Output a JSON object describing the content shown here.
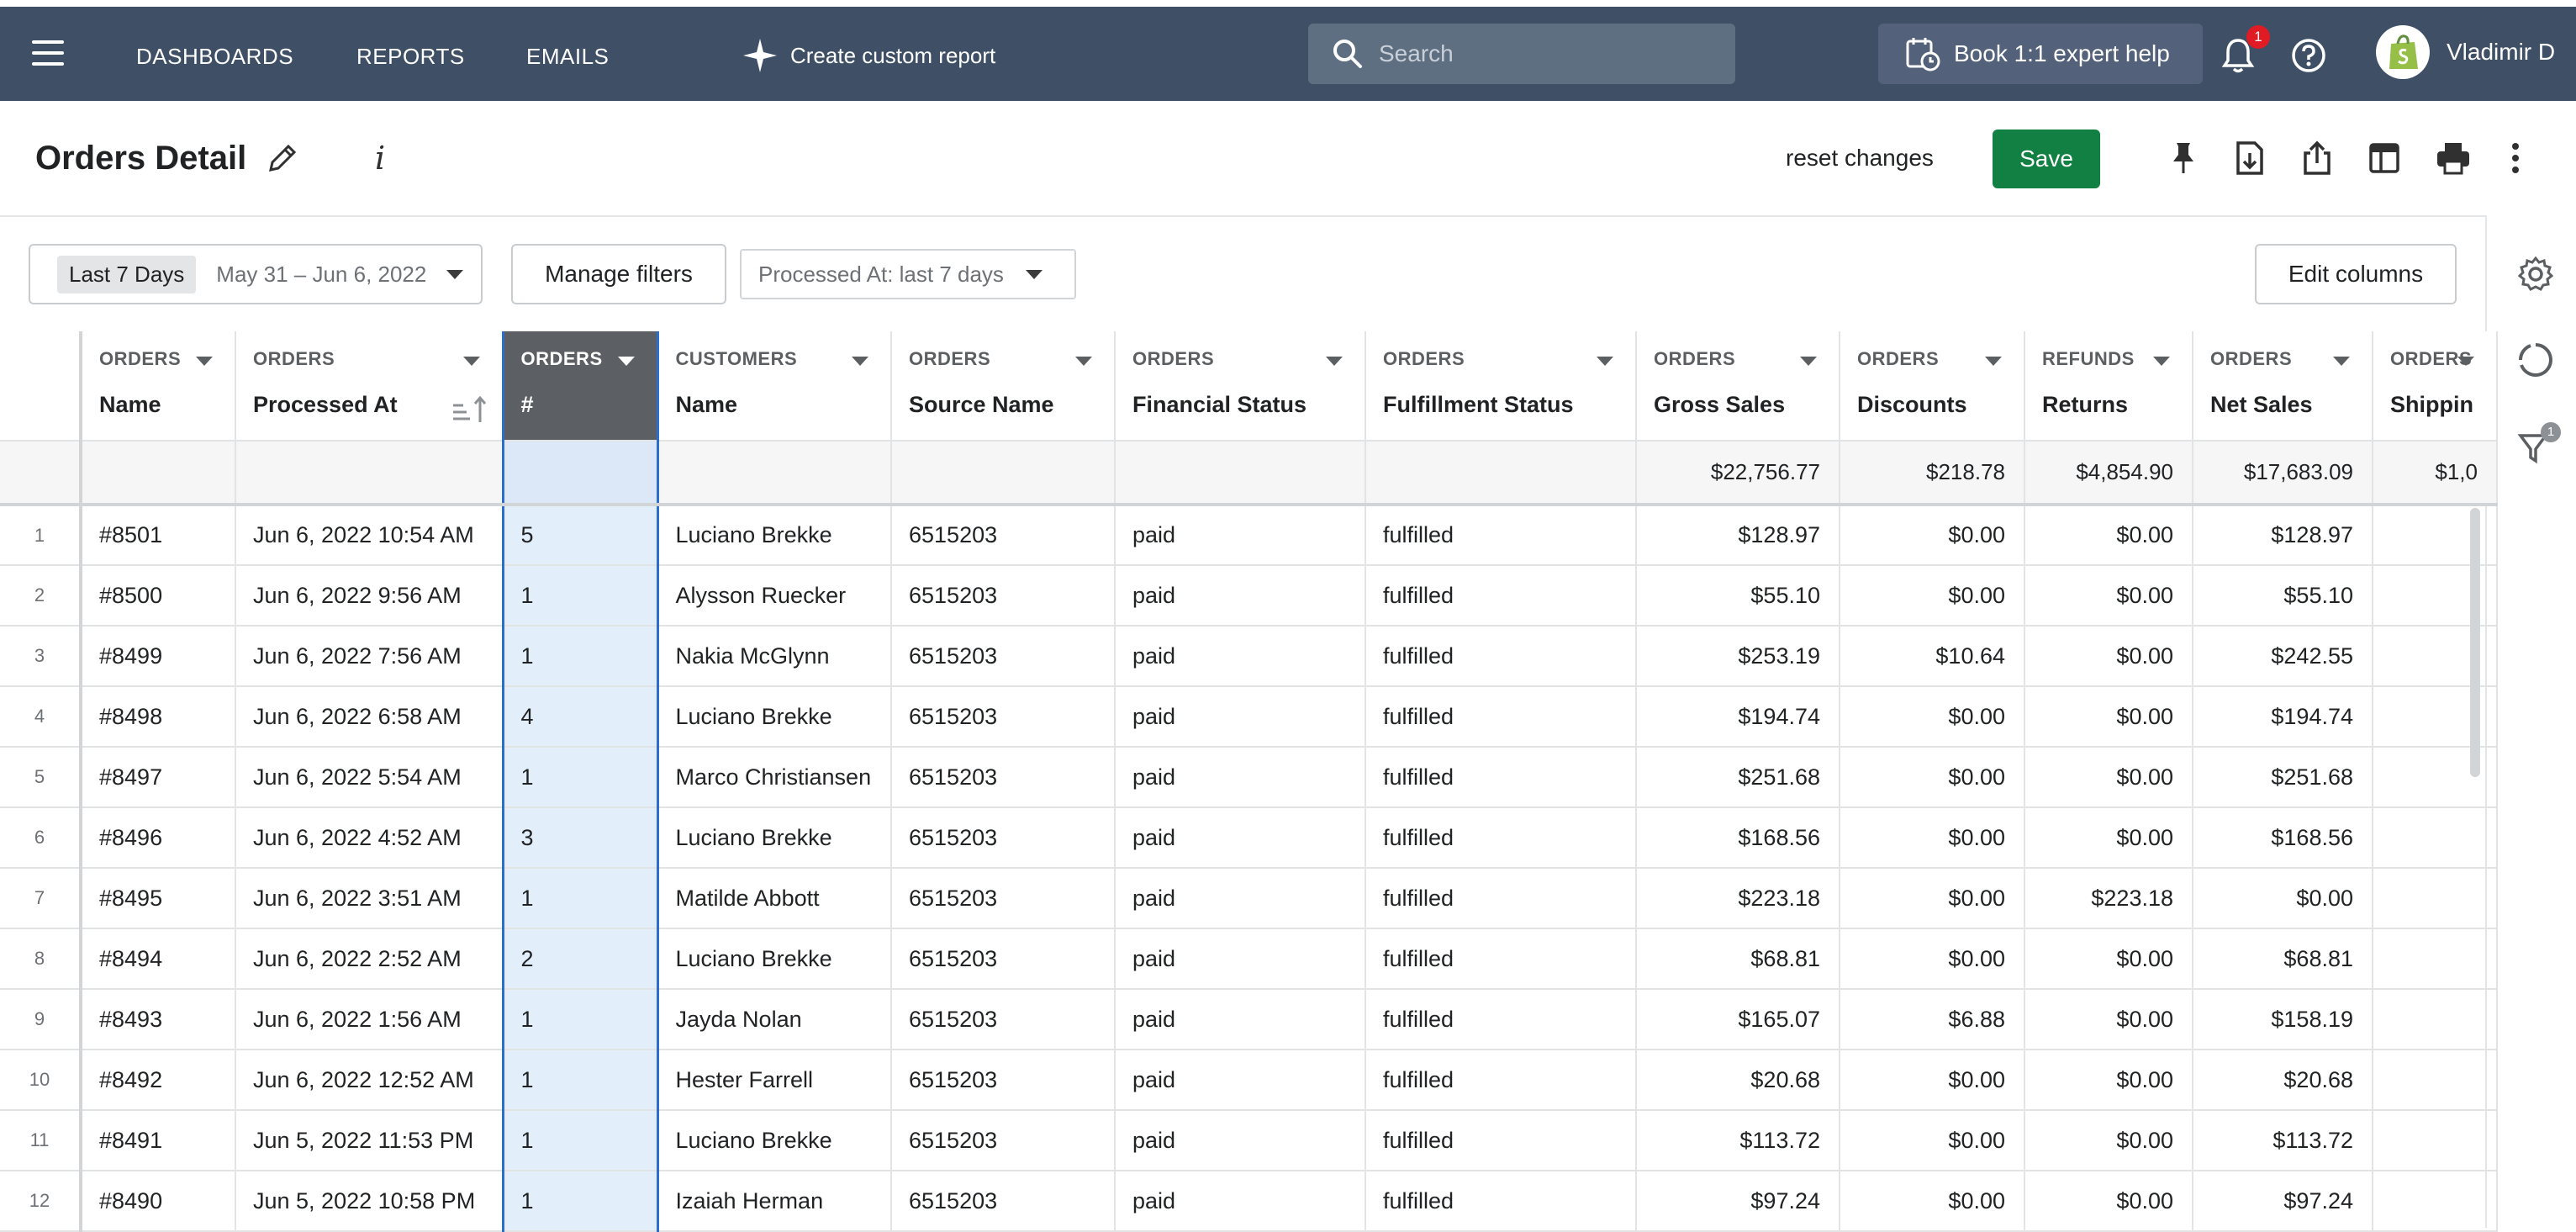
{
  "nav": {
    "links": [
      "DASHBOARDS",
      "REPORTS",
      "EMAILS"
    ],
    "create_report": "Create custom report",
    "search_placeholder": "Search",
    "expert_help": "Book 1:1 expert help",
    "notification_count": "1",
    "user_name": "Vladimir D"
  },
  "toolbar": {
    "title": "Orders Detail",
    "info": "i",
    "reset": "reset changes",
    "save": "Save"
  },
  "filters": {
    "date_chip": "Last 7 Days",
    "date_range": "May 31 – Jun 6, 2022",
    "manage": "Manage filters",
    "processed": "Processed At: last 7 days",
    "edit_columns": "Edit columns"
  },
  "sidebar": {
    "filter_badge": "1"
  },
  "table": {
    "columns": [
      {
        "group": "ORDERS",
        "name": "Name"
      },
      {
        "group": "ORDERS",
        "name": "Processed At"
      },
      {
        "group": "ORDERS",
        "name": "#"
      },
      {
        "group": "CUSTOMERS",
        "name": "Name"
      },
      {
        "group": "ORDERS",
        "name": "Source Name"
      },
      {
        "group": "ORDERS",
        "name": "Financial Status"
      },
      {
        "group": "ORDERS",
        "name": "Fulfillment Status"
      },
      {
        "group": "ORDERS",
        "name": "Gross Sales"
      },
      {
        "group": "ORDERS",
        "name": "Discounts"
      },
      {
        "group": "REFUNDS",
        "name": "Returns"
      },
      {
        "group": "ORDERS",
        "name": "Net Sales"
      },
      {
        "group": "ORDERS",
        "name": "Shippin"
      }
    ],
    "totals": [
      "",
      "",
      "",
      "",
      "",
      "",
      "",
      "$22,756.77",
      "$218.78",
      "$4,854.90",
      "$17,683.09",
      "$1,0"
    ],
    "rows": [
      {
        "idx": "1",
        "cells": [
          "#8501",
          "Jun  6, 2022 10:54 AM",
          "5",
          "Luciano Brekke",
          "6515203",
          "paid",
          "fulfilled",
          "$128.97",
          "$0.00",
          "$0.00",
          "$128.97",
          ""
        ]
      },
      {
        "idx": "2",
        "cells": [
          "#8500",
          "Jun  6, 2022 9:56 AM",
          "1",
          "Alysson Ruecker",
          "6515203",
          "paid",
          "fulfilled",
          "$55.10",
          "$0.00",
          "$0.00",
          "$55.10",
          ""
        ]
      },
      {
        "idx": "3",
        "cells": [
          "#8499",
          "Jun  6, 2022 7:56 AM",
          "1",
          "Nakia McGlynn",
          "6515203",
          "paid",
          "fulfilled",
          "$253.19",
          "$10.64",
          "$0.00",
          "$242.55",
          ""
        ]
      },
      {
        "idx": "4",
        "cells": [
          "#8498",
          "Jun  6, 2022 6:58 AM",
          "4",
          "Luciano Brekke",
          "6515203",
          "paid",
          "fulfilled",
          "$194.74",
          "$0.00",
          "$0.00",
          "$194.74",
          ""
        ]
      },
      {
        "idx": "5",
        "cells": [
          "#8497",
          "Jun  6, 2022 5:54 AM",
          "1",
          "Marco Christiansen",
          "6515203",
          "paid",
          "fulfilled",
          "$251.68",
          "$0.00",
          "$0.00",
          "$251.68",
          ""
        ]
      },
      {
        "idx": "6",
        "cells": [
          "#8496",
          "Jun  6, 2022 4:52 AM",
          "3",
          "Luciano Brekke",
          "6515203",
          "paid",
          "fulfilled",
          "$168.56",
          "$0.00",
          "$0.00",
          "$168.56",
          ""
        ]
      },
      {
        "idx": "7",
        "cells": [
          "#8495",
          "Jun  6, 2022 3:51 AM",
          "1",
          "Matilde Abbott",
          "6515203",
          "paid",
          "fulfilled",
          "$223.18",
          "$0.00",
          "$223.18",
          "$0.00",
          ""
        ]
      },
      {
        "idx": "8",
        "cells": [
          "#8494",
          "Jun  6, 2022 2:52 AM",
          "2",
          "Luciano Brekke",
          "6515203",
          "paid",
          "fulfilled",
          "$68.81",
          "$0.00",
          "$0.00",
          "$68.81",
          ""
        ]
      },
      {
        "idx": "9",
        "cells": [
          "#8493",
          "Jun  6, 2022 1:56 AM",
          "1",
          "Jayda Nolan",
          "6515203",
          "paid",
          "fulfilled",
          "$165.07",
          "$6.88",
          "$0.00",
          "$158.19",
          ""
        ]
      },
      {
        "idx": "10",
        "cells": [
          "#8492",
          "Jun  6, 2022 12:52 AM",
          "1",
          "Hester Farrell",
          "6515203",
          "paid",
          "fulfilled",
          "$20.68",
          "$0.00",
          "$0.00",
          "$20.68",
          ""
        ]
      },
      {
        "idx": "11",
        "cells": [
          "#8491",
          "Jun  5, 2022 11:53 PM",
          "1",
          "Luciano Brekke",
          "6515203",
          "paid",
          "fulfilled",
          "$113.72",
          "$0.00",
          "$0.00",
          "$113.72",
          ""
        ]
      },
      {
        "idx": "12",
        "cells": [
          "#8490",
          "Jun  5, 2022 10:58 PM",
          "1",
          "Izaiah Herman",
          "6515203",
          "paid",
          "fulfilled",
          "$97.24",
          "$0.00",
          "$0.00",
          "$97.24",
          ""
        ]
      }
    ]
  }
}
